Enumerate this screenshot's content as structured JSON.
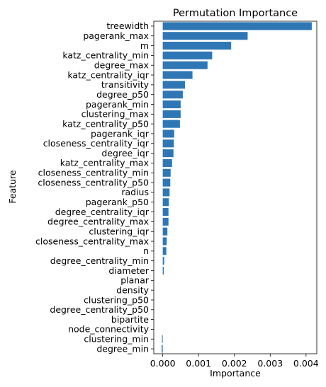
{
  "chart_data": {
    "type": "bar",
    "orientation": "horizontal",
    "title": "Permutation Importance",
    "xlabel": "Importance",
    "ylabel": "Feature",
    "xlim": [
      -0.00025,
      0.0043
    ],
    "xticks": [
      0.0,
      0.001,
      0.002,
      0.003,
      0.004
    ],
    "xtick_labels": [
      "0.000",
      "0.001",
      "0.002",
      "0.003",
      "0.004"
    ],
    "grid": false,
    "bar_color": "#2f77b4",
    "categories": [
      "treewidth",
      "pagerank_max",
      "m",
      "katz_centrality_min",
      "degree_max",
      "katz_centrality_iqr",
      "transitivity",
      "degree_p50",
      "pagerank_min",
      "clustering_max",
      "katz_centrality_p50",
      "pagerank_iqr",
      "closeness_centrality_iqr",
      "degree_iqr",
      "katz_centrality_max",
      "closeness_centrality_min",
      "closeness_centrality_p50",
      "radius",
      "pagerank_p50",
      "degree_centrality_iqr",
      "degree_centrality_max",
      "clustering_iqr",
      "closeness_centrality_max",
      "n",
      "degree_centrality_min",
      "diameter",
      "planar",
      "density",
      "clustering_p50",
      "degree_centrality_p50",
      "bipartite",
      "node_connectivity",
      "clustering_min",
      "degree_min"
    ],
    "values": [
      0.00416,
      0.00237,
      0.00191,
      0.00138,
      0.00125,
      0.00083,
      0.00062,
      0.00056,
      0.0005,
      0.0005,
      0.00048,
      0.00032,
      0.00031,
      0.0003,
      0.00026,
      0.00022,
      0.00021,
      0.00019,
      0.00017,
      0.00016,
      0.00016,
      0.00013,
      0.00011,
      0.0001,
      4e-05,
      3e-05,
      0.0,
      0.0,
      0.0,
      0.0,
      0.0,
      0.0,
      -2e-05,
      -3e-05
    ]
  }
}
